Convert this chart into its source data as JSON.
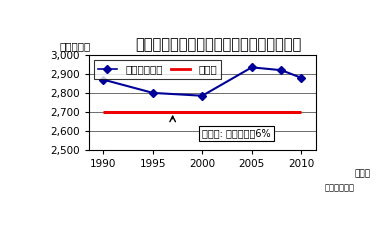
{
  "title": "市内の温室効果ガスの排出量の推移と予測",
  "ylabel": "（万トン）",
  "xlabel_unit": "（年）",
  "xlabel_note": "（本市調べ）",
  "line_x": [
    1990,
    1995,
    2000,
    2005,
    2008,
    2010
  ],
  "line_y": [
    2870,
    2800,
    2785,
    2935,
    2920,
    2880
  ],
  "target_y": 2700,
  "target_x_start": 1990,
  "target_x_end": 2010,
  "ylim": [
    2500,
    3000
  ],
  "xlim": [
    1988.5,
    2011.5
  ],
  "xticks": [
    1990,
    1995,
    2000,
    2005,
    2010
  ],
  "yticks": [
    2500,
    2600,
    2700,
    2800,
    2900,
    3000
  ],
  "line_color": "#000099",
  "target_color": "#ee0000",
  "line_legend": "温室効果ガス",
  "target_legend": "目標値",
  "annotation_text": "目標値: 基準年の－6%",
  "bg_color": "#ffffff",
  "grid_color": "#000000",
  "title_fontsize": 10.5,
  "tick_fontsize": 7.5,
  "legend_fontsize": 7.5,
  "ylabel_fontsize": 7.5,
  "annot_fontsize": 7
}
